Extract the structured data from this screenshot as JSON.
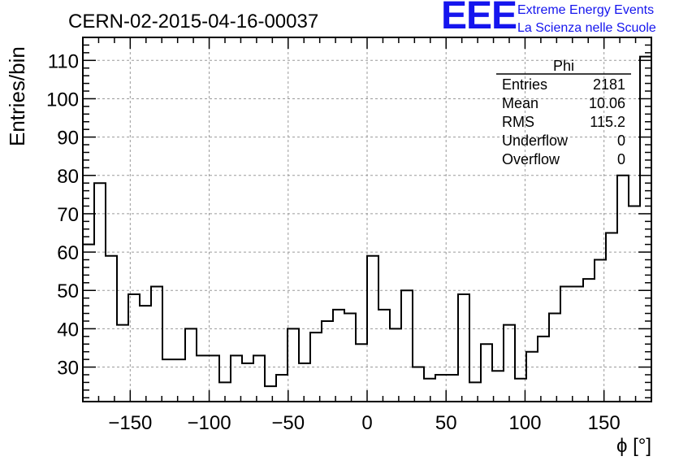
{
  "chart_data": {
    "type": "histogram",
    "title": "CERN-02-2015-04-16-00037",
    "xlabel": "ϕ [°]",
    "ylabel": "Entries/bin",
    "xlim": [
      -180,
      180
    ],
    "ylim": [
      21,
      116
    ],
    "bin_edges_start": -180,
    "bin_width": 7.2,
    "values": [
      62,
      78,
      59,
      41,
      49,
      46,
      51,
      32,
      32,
      40,
      33,
      33,
      26,
      33,
      31,
      33,
      25,
      28,
      40,
      31,
      39,
      42,
      45,
      44,
      36,
      59,
      45,
      40,
      50,
      30,
      27,
      28,
      28,
      49,
      26,
      36,
      29,
      41,
      27,
      34,
      38,
      44,
      51,
      51,
      53,
      58,
      65,
      80,
      72,
      111
    ],
    "x_ticks": [
      "−150",
      "−100",
      "−50",
      "0",
      "50",
      "100",
      "150"
    ],
    "x_tick_values": [
      -150,
      -100,
      -50,
      0,
      50,
      100,
      150
    ],
    "y_ticks": [
      "30",
      "40",
      "50",
      "60",
      "70",
      "80",
      "90",
      "100",
      "110"
    ],
    "y_tick_values": [
      30,
      40,
      50,
      60,
      70,
      80,
      90,
      100,
      110
    ],
    "grid": true,
    "stats": {
      "name": "Phi",
      "rows": [
        {
          "label": "Entries",
          "value": "2181"
        },
        {
          "label": "Mean",
          "value": "10.06"
        },
        {
          "label": "RMS",
          "value": "115.2"
        },
        {
          "label": "Underflow",
          "value": "0"
        },
        {
          "label": "Overflow",
          "value": "0"
        }
      ]
    },
    "colors": {
      "line": "#000000",
      "grid": "#9a9a9a",
      "logo": "#1515ee"
    }
  },
  "logo": {
    "mark": "EEE",
    "line1": "Extreme Energy Events",
    "line2": "La Scienza nelle Scuole"
  }
}
